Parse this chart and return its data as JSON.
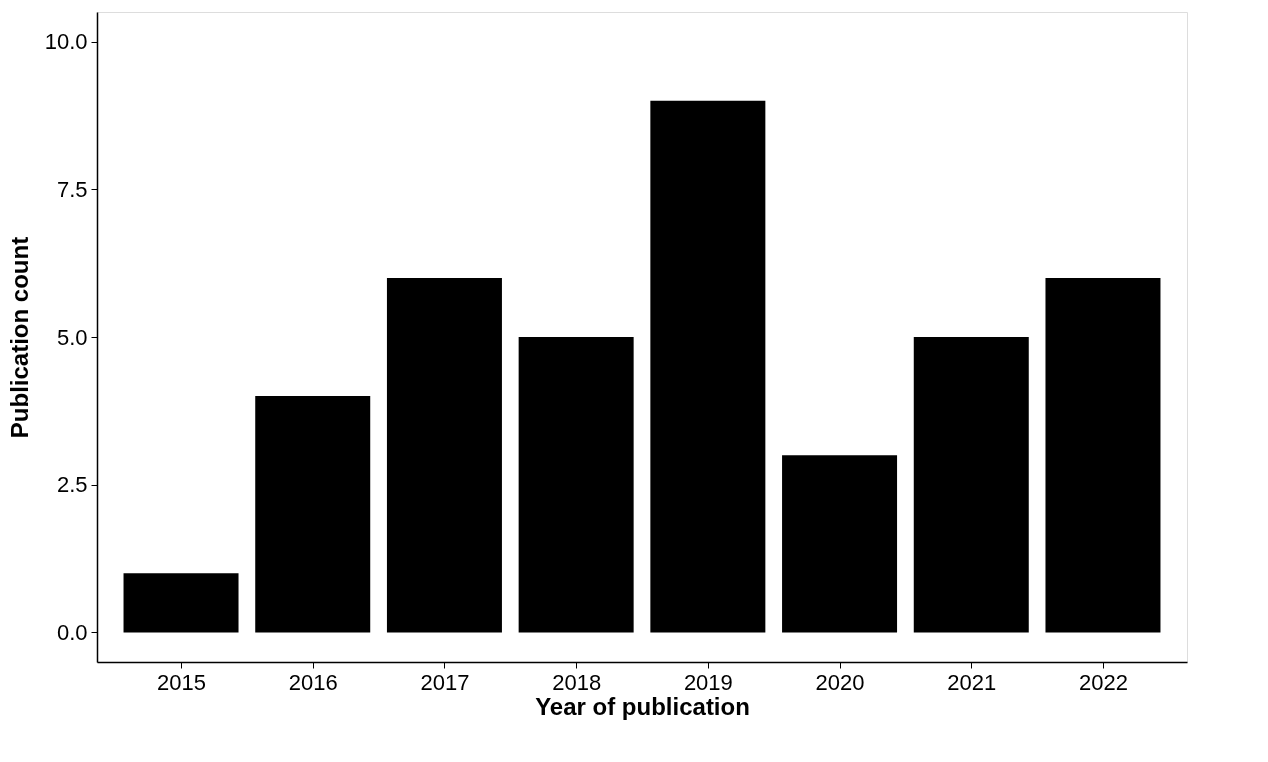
{
  "chart_data": {
    "type": "bar",
    "xlabel": "Year of publication",
    "ylabel": "Publication count",
    "categories": [
      "2015",
      "2016",
      "2017",
      "2018",
      "2019",
      "2020",
      "2021",
      "2022"
    ],
    "values": [
      1,
      4,
      6,
      5,
      9,
      3,
      5,
      6
    ],
    "color": "#000000",
    "ylim": [
      -0.5,
      10.5
    ],
    "yticks": [
      {
        "value": 0,
        "label": "0.0"
      },
      {
        "value": 2.5,
        "label": "2.5"
      },
      {
        "value": 5,
        "label": "5.0"
      },
      {
        "value": 7.5,
        "label": "7.5"
      },
      {
        "value": 10,
        "label": "10.0"
      }
    ],
    "grid": false
  }
}
